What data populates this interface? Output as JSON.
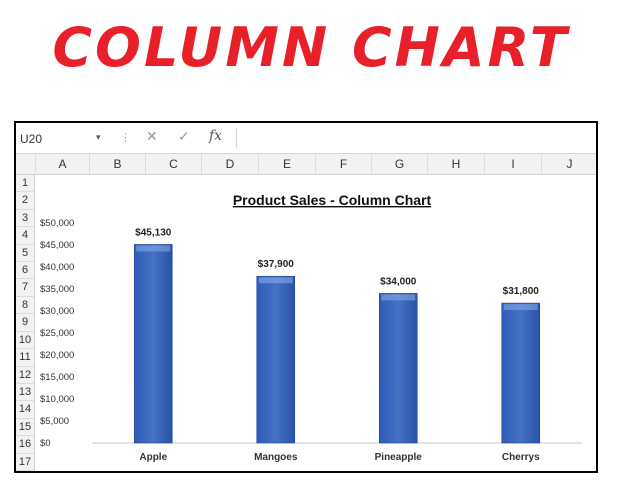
{
  "banner": {
    "text": "COLUMN CHART"
  },
  "spreadsheet": {
    "name_box": "U20",
    "column_headers": [
      "A",
      "B",
      "C",
      "D",
      "E",
      "F",
      "G",
      "H",
      "I",
      "J"
    ],
    "row_headers": [
      "1",
      "2",
      "3",
      "4",
      "5",
      "6",
      "7",
      "8",
      "9",
      "10",
      "11",
      "12",
      "13",
      "14",
      "15",
      "16",
      "17"
    ],
    "icons": [
      "dropdown-chevron-icon",
      "cancel-x-icon",
      "enter-check-icon",
      "fx-icon"
    ]
  },
  "chart_data": {
    "type": "bar",
    "title": "Product Sales - Column Chart",
    "categories": [
      "Apple",
      "Mangoes",
      "Pineapple",
      "Cherrys"
    ],
    "values": [
      45130,
      37900,
      34000,
      31800
    ],
    "data_labels": [
      "$45,130",
      "$37,900",
      "$34,000",
      "$31,800"
    ],
    "yticks": [
      "$0",
      "$5,000",
      "$10,000",
      "$15,000",
      "$20,000",
      "$25,000",
      "$30,000",
      "$35,000",
      "$40,000",
      "$45,000",
      "$50,000"
    ],
    "ylim": [
      0,
      50000
    ],
    "xlabel": "",
    "ylabel": "",
    "grid": false,
    "legend": "none",
    "bar_color": "#4472c4"
  }
}
